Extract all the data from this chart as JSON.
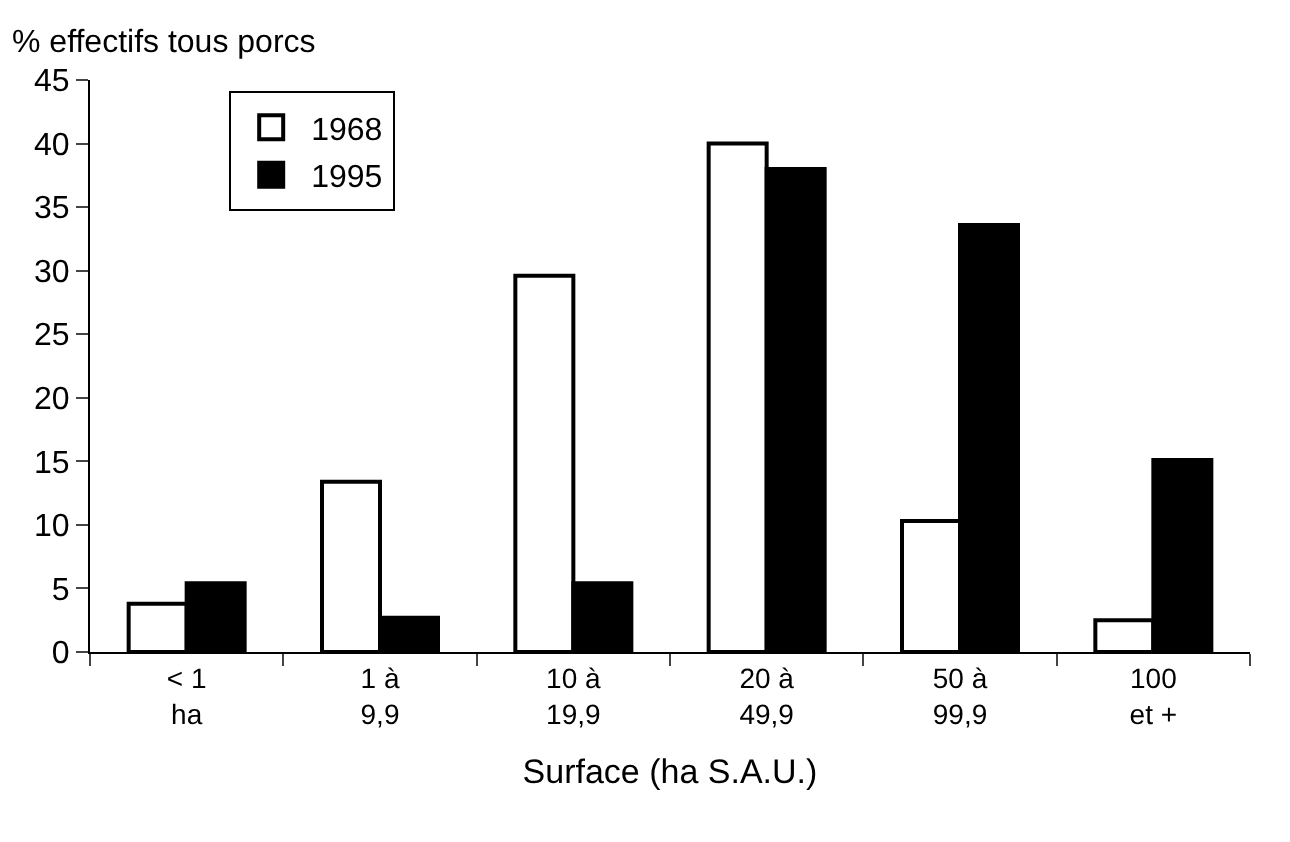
{
  "chart_data": {
    "type": "bar",
    "ylabel": "% effectifs tous porcs",
    "xlabel": "Surface (ha S.A.U.)",
    "categories": [
      "< 1\nha",
      "1 à\n9,9",
      "10 à\n19,9",
      "20 à\n49,9",
      "50 à\n99,9",
      "100\net +"
    ],
    "series": [
      {
        "name": "1968",
        "color": "#ffffff",
        "values": [
          3.8,
          13.4,
          29.6,
          40.0,
          10.3,
          2.5
        ]
      },
      {
        "name": "1995",
        "color": "#000000",
        "values": [
          5.4,
          2.7,
          5.4,
          38.0,
          33.6,
          15.1
        ]
      }
    ],
    "ylim": [
      0,
      45
    ],
    "yticks": [
      0,
      5,
      10,
      15,
      20,
      25,
      30,
      35,
      40,
      45
    ],
    "grid": false,
    "legend": "top left"
  }
}
